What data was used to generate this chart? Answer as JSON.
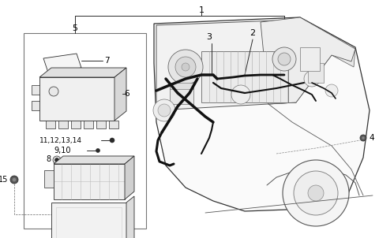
{
  "bg_color": "#ffffff",
  "lc": "#2a2a2a",
  "tc": "#000000",
  "fig_w": 4.8,
  "fig_h": 3.02,
  "dpi": 100
}
